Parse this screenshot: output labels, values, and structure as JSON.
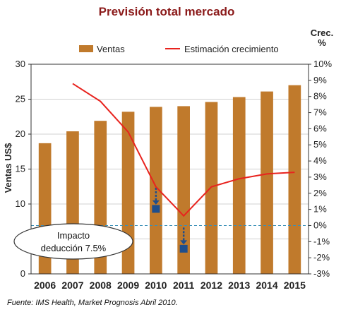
{
  "chart_data": {
    "type": "bar",
    "title": "Previsión total mercado",
    "categories": [
      "2006",
      "2007",
      "2008",
      "2009",
      "2010",
      "2011",
      "2012",
      "2013",
      "2014",
      "2015"
    ],
    "series": [
      {
        "name": "Ventas",
        "type": "bar",
        "axis": "left",
        "color": "#c07a2c",
        "values": [
          18.7,
          20.4,
          21.9,
          23.2,
          23.9,
          24.0,
          24.6,
          25.3,
          26.1,
          27.0
        ]
      },
      {
        "name": "Estimación crecimiento",
        "type": "line",
        "axis": "right",
        "color": "#e8231e",
        "values": [
          null,
          8.8,
          7.7,
          5.8,
          2.4,
          0.6,
          2.4,
          2.9,
          3.2,
          3.3
        ]
      }
    ],
    "ylabel": "Ventas US$",
    "ylim": [
      0,
      30
    ],
    "yticks": [
      0,
      5,
      10,
      15,
      20,
      25,
      30
    ],
    "y2label": "Crec. %",
    "y2lim": [
      -3,
      10
    ],
    "y2ticks": [
      -3,
      -2,
      -1,
      0,
      1,
      2,
      3,
      4,
      5,
      6,
      7,
      8,
      9,
      10
    ],
    "y2tick_suffix": "%",
    "reference_line": {
      "axis": "right",
      "value": 0,
      "style": "dashed",
      "color": "#3a8fb7"
    },
    "grid": "horizontal",
    "legend_position": "top",
    "annotations": [
      {
        "text_lines": [
          "Impacto",
          "deducción 7.5%"
        ],
        "style": "ellipse-callout"
      }
    ],
    "markers": [
      {
        "category": "2010",
        "value": 9.3,
        "axis": "left",
        "shape": "square",
        "color": "#1f4e8c",
        "arrow": "down"
      },
      {
        "category": "2011",
        "value": 3.6,
        "axis": "left",
        "shape": "square",
        "color": "#1f4e8c",
        "arrow": "down"
      }
    ]
  },
  "source": "Fuente: IMS Health, Market Prognosis Abril 2010."
}
